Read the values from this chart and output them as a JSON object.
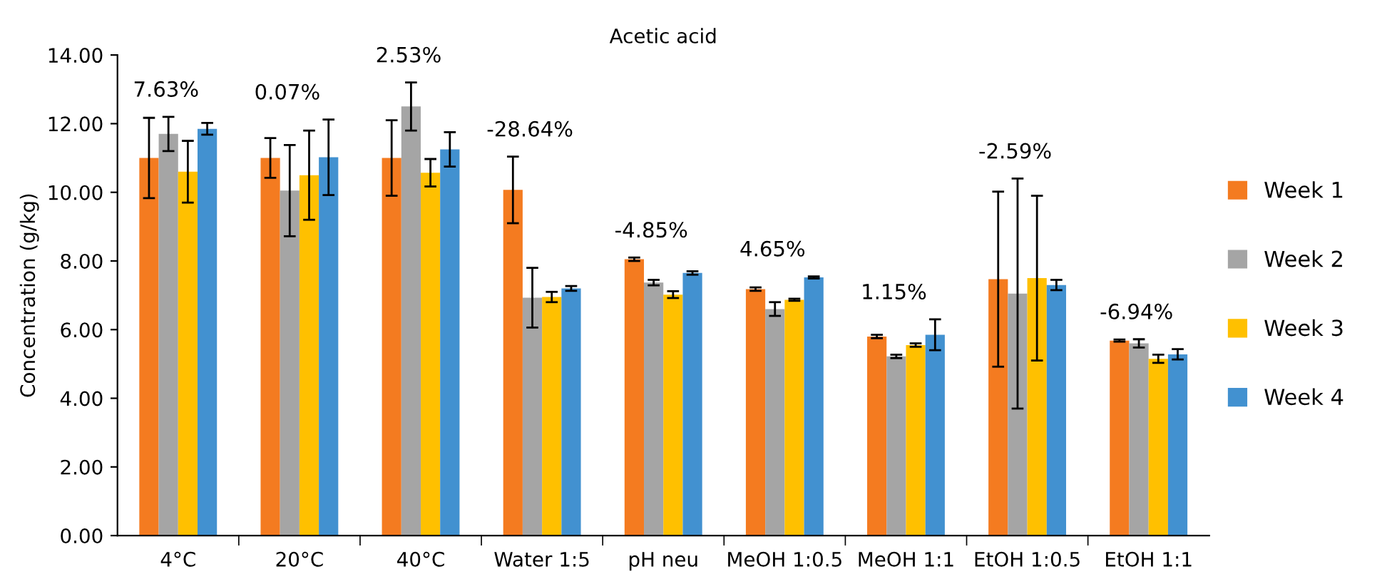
{
  "chart_data": {
    "type": "bar",
    "title": "Acetic acid",
    "ylabel": "Concentration (g/kg)",
    "categories": [
      "4°C",
      "20°C",
      "40°C",
      "Water 1:5",
      "pH neu",
      "MeOH 1:0.5",
      "MeOH 1:1",
      "EtOH 1:0.5",
      "EtOH 1:1"
    ],
    "series": [
      {
        "name": "Week 1",
        "color": "#f47b20",
        "values": [
          11.0,
          11.0,
          11.0,
          10.07,
          8.05,
          7.18,
          5.8,
          7.47,
          5.68
        ],
        "errors": [
          1.17,
          0.58,
          1.1,
          0.97,
          0.05,
          0.05,
          0.05,
          2.55,
          0.03
        ]
      },
      {
        "name": "Week 2",
        "color": "#a5a5a5",
        "values": [
          11.7,
          10.05,
          12.5,
          6.93,
          7.37,
          6.6,
          5.22,
          7.05,
          5.6
        ],
        "errors": [
          0.5,
          1.33,
          0.7,
          0.87,
          0.08,
          0.2,
          0.05,
          3.35,
          0.12
        ]
      },
      {
        "name": "Week 3",
        "color": "#ffc000",
        "values": [
          10.6,
          10.5,
          10.57,
          6.95,
          7.02,
          6.87,
          5.55,
          7.5,
          5.15
        ],
        "errors": [
          0.9,
          1.3,
          0.4,
          0.15,
          0.1,
          0.03,
          0.05,
          2.4,
          0.12
        ]
      },
      {
        "name": "Week 4",
        "color": "#4291d0",
        "values": [
          11.85,
          11.02,
          11.25,
          7.2,
          7.65,
          7.52,
          5.85,
          7.3,
          5.28
        ],
        "errors": [
          0.17,
          1.1,
          0.5,
          0.07,
          0.05,
          0.03,
          0.45,
          0.15,
          0.15
        ]
      }
    ],
    "ylim": [
      0,
      14
    ],
    "yticks": [
      {
        "value": 0,
        "label": "0.00"
      },
      {
        "value": 2,
        "label": "2.00"
      },
      {
        "value": 4,
        "label": "4.00"
      },
      {
        "value": 6,
        "label": "6.00"
      },
      {
        "value": 8,
        "label": "8.00"
      },
      {
        "value": 10,
        "label": "10.00"
      },
      {
        "value": 12,
        "label": "12.00"
      },
      {
        "value": 14,
        "label": "14.00"
      }
    ],
    "grid": false,
    "legend": "right",
    "annotations": [
      "7.63%",
      "0.07%",
      "2.53%",
      "-28.64%",
      "-4.85%",
      "4.65%",
      "1.15%",
      "-2.59%",
      "-6.94%"
    ]
  }
}
